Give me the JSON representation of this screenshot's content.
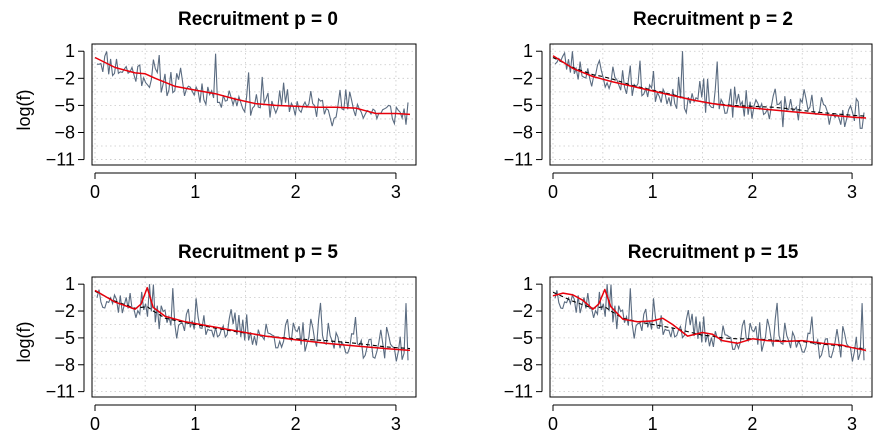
{
  "figure": {
    "background": "#ffffff",
    "series_colors": {
      "raw": "#5a6b80",
      "smooth": "#e8000b",
      "reference": "#000000",
      "grid": "#c8c8c8"
    }
  },
  "chart_data": [
    {
      "type": "line",
      "title": "Recruitment p = 0",
      "xlabel": "",
      "ylabel": "log(f)",
      "xlim": [
        0,
        3.14159
      ],
      "ylim": [
        -11,
        1
      ],
      "xticks": [
        0,
        1,
        2,
        3
      ],
      "yticks": [
        1,
        -2,
        -5,
        -8,
        -11
      ],
      "grid": true,
      "x": [
        0.0,
        0.2,
        0.4,
        0.5,
        0.6,
        0.8,
        1.0,
        1.2,
        1.4,
        1.6,
        1.8,
        2.0,
        2.2,
        2.4,
        2.6,
        2.7,
        2.8,
        3.0,
        3.14
      ],
      "smooth": [
        0.3,
        -0.8,
        -1.4,
        -1.5,
        -2.0,
        -2.9,
        -3.3,
        -3.7,
        -4.3,
        -4.8,
        -5.0,
        -5.1,
        -5.2,
        -5.2,
        -5.3,
        -5.6,
        -5.9,
        -5.9,
        -6.0
      ],
      "reference": null,
      "raw_seed": 11
    },
    {
      "type": "line",
      "title": "Recruitment p = 2",
      "xlabel": "",
      "ylabel": "",
      "xlim": [
        0,
        3.14159
      ],
      "ylim": [
        -11,
        1
      ],
      "xticks": [
        0,
        1,
        2,
        3
      ],
      "yticks": [
        1,
        -2,
        -5,
        -8,
        -11
      ],
      "grid": true,
      "x": [
        0.0,
        0.2,
        0.4,
        0.5,
        0.6,
        0.8,
        1.0,
        1.2,
        1.4,
        1.6,
        1.8,
        2.0,
        2.2,
        2.4,
        2.6,
        2.8,
        3.0,
        3.14
      ],
      "smooth": [
        0.5,
        -0.9,
        -1.8,
        -2.1,
        -2.4,
        -2.9,
        -3.4,
        -3.9,
        -4.4,
        -4.8,
        -5.1,
        -5.3,
        -5.5,
        -5.7,
        -5.9,
        -6.1,
        -6.3,
        -6.4
      ],
      "reference": [
        0.3,
        -0.8,
        -1.6,
        -1.8,
        -2.1,
        -2.8,
        -3.3,
        -3.8,
        -4.4,
        -4.8,
        -5.0,
        -5.1,
        -5.2,
        -5.4,
        -5.7,
        -5.9,
        -6.1,
        -6.2
      ],
      "raw_seed": 23
    },
    {
      "type": "line",
      "title": "Recruitment p = 5",
      "xlabel": "",
      "ylabel": "log(f)",
      "xlim": [
        0,
        3.14159
      ],
      "ylim": [
        -11,
        1
      ],
      "xticks": [
        0,
        1,
        2,
        3
      ],
      "yticks": [
        1,
        -2,
        -5,
        -8,
        -11
      ],
      "grid": true,
      "x": [
        0.0,
        0.2,
        0.4,
        0.46,
        0.52,
        0.58,
        0.7,
        0.9,
        1.1,
        1.4,
        1.7,
        2.0,
        2.3,
        2.6,
        2.9,
        3.14
      ],
      "smooth": [
        0.3,
        -1.0,
        -1.8,
        -1.2,
        0.6,
        -1.6,
        -2.6,
        -3.2,
        -3.6,
        -4.2,
        -4.8,
        -5.2,
        -5.6,
        -5.9,
        -6.2,
        -6.4
      ],
      "reference": [
        0.2,
        -0.9,
        -1.7,
        -1.6,
        -1.5,
        -2.0,
        -2.8,
        -3.3,
        -3.7,
        -4.3,
        -4.8,
        -5.1,
        -5.3,
        -5.6,
        -6.0,
        -6.2
      ],
      "raw_seed": 37
    },
    {
      "type": "line",
      "title": "Recruitment p = 15",
      "xlabel": "",
      "ylabel": "",
      "xlim": [
        0,
        3.14159
      ],
      "ylim": [
        -11,
        1
      ],
      "xticks": [
        0,
        1,
        2,
        3
      ],
      "yticks": [
        1,
        -2,
        -5,
        -8,
        -11
      ],
      "grid": true,
      "x": [
        0.0,
        0.1,
        0.2,
        0.3,
        0.4,
        0.46,
        0.52,
        0.58,
        0.7,
        0.85,
        1.0,
        1.1,
        1.2,
        1.35,
        1.5,
        1.6,
        1.7,
        1.85,
        2.0,
        2.15,
        2.3,
        2.5,
        2.7,
        2.9,
        3.0,
        3.14
      ],
      "smooth": [
        -0.3,
        0.0,
        -0.2,
        -0.8,
        -1.8,
        -1.2,
        0.4,
        -1.5,
        -2.9,
        -3.2,
        -3.1,
        -2.8,
        -3.5,
        -4.8,
        -4.4,
        -4.6,
        -5.3,
        -5.6,
        -5.1,
        -5.3,
        -5.4,
        -5.3,
        -5.6,
        -5.8,
        -6.1,
        -6.4
      ],
      "reference": [
        0.1,
        -0.4,
        -0.9,
        -1.3,
        -1.7,
        -1.6,
        -1.5,
        -2.0,
        -2.8,
        -3.2,
        -3.5,
        -3.7,
        -3.9,
        -4.3,
        -4.7,
        -4.8,
        -5.0,
        -5.1,
        -5.1,
        -5.2,
        -5.3,
        -5.4,
        -5.7,
        -5.9,
        -6.1,
        -6.2
      ],
      "raw_seed": 37
    }
  ]
}
